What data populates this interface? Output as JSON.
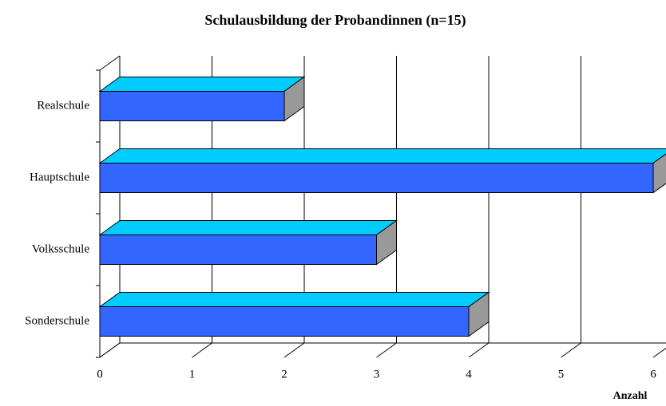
{
  "chart_data": {
    "type": "bar3d",
    "orientation": "horizontal",
    "title": "Schulausbildung der Probandinnen (n=15)",
    "x_axis_label": "Anzahl",
    "categories": [
      "Realschule",
      "Hauptschule",
      "Volksschule",
      "Sonderschule"
    ],
    "values": [
      2,
      6,
      3,
      4
    ],
    "color": "#3366ff",
    "top_color": "#00ccff",
    "side_color": "#999999",
    "xlim": [
      0,
      6
    ],
    "xticks": [
      0,
      1,
      2,
      3,
      4,
      5,
      6
    ],
    "grid": true
  }
}
